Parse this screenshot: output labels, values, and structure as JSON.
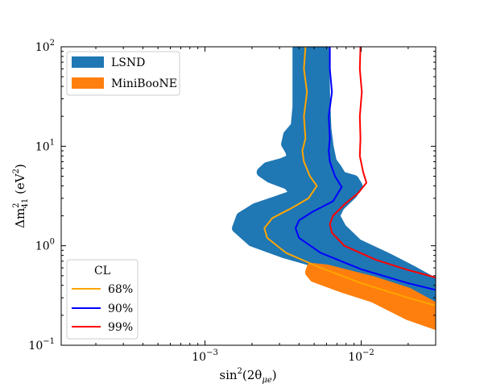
{
  "chart_data": {
    "type": "contour",
    "xscale": "log",
    "yscale": "log",
    "xlim": [
      0.00012,
      0.03
    ],
    "ylim": [
      0.1,
      100
    ],
    "xlabel": "sin²(2θμe)",
    "xlabel_parts": {
      "base": "sin",
      "sup": "2",
      "mid": "(2θ",
      "sub": "μe",
      "end": ")"
    },
    "ylabel": "Δm²₄₁ (eV²)",
    "ylabel_parts": {
      "base": "Δm",
      "sup": "2",
      "sub": "41",
      "unit": " (eV",
      "unit_sup": "2",
      "unit_end": ")"
    },
    "x_ticks": [
      {
        "value": 0.001,
        "base": "10",
        "exp": "−3"
      },
      {
        "value": 0.01,
        "base": "10",
        "exp": "−2"
      }
    ],
    "y_ticks": [
      {
        "value": 0.1,
        "base": "10",
        "exp": "−1"
      },
      {
        "value": 1,
        "base": "10",
        "exp": "0"
      },
      {
        "value": 10,
        "base": "10",
        "exp": "1"
      },
      {
        "value": 100,
        "base": "10",
        "exp": "2"
      }
    ],
    "regions": [
      {
        "name": "LSND",
        "color": "#1f77b4",
        "polygon": [
          [
            0.0039,
            100
          ],
          [
            0.0058,
            100
          ],
          [
            0.0059,
            30
          ],
          [
            0.006,
            15
          ],
          [
            0.0062,
            10
          ],
          [
            0.0065,
            7
          ],
          [
            0.007,
            6
          ],
          [
            0.0075,
            5
          ],
          [
            0.009,
            4.6
          ],
          [
            0.0095,
            4
          ],
          [
            0.0088,
            3.3
          ],
          [
            0.0073,
            2.5
          ],
          [
            0.0068,
            2.0
          ],
          [
            0.0075,
            1.5
          ],
          [
            0.0095,
            1.05
          ],
          [
            0.015,
            0.75
          ],
          [
            0.022,
            0.55
          ],
          [
            0.03,
            0.42
          ],
          [
            0.03,
            0.3
          ],
          [
            0.022,
            0.36
          ],
          [
            0.014,
            0.48
          ],
          [
            0.009,
            0.56
          ],
          [
            0.0055,
            0.66
          ],
          [
            0.0032,
            0.84
          ],
          [
            0.002,
            1.1
          ],
          [
            0.0016,
            1.5
          ],
          [
            0.0017,
            1.95
          ],
          [
            0.0021,
            2.4
          ],
          [
            0.0028,
            2.8
          ],
          [
            0.0038,
            3.3
          ],
          [
            0.0034,
            4.1
          ],
          [
            0.0026,
            4.8
          ],
          [
            0.0023,
            5.5
          ],
          [
            0.0025,
            6.2
          ],
          [
            0.0031,
            6.8
          ],
          [
            0.0036,
            7.5
          ],
          [
            0.0035,
            9
          ],
          [
            0.0033,
            10.5
          ],
          [
            0.0034,
            13
          ],
          [
            0.0038,
            16
          ],
          [
            0.0039,
            25
          ]
        ]
      },
      {
        "name": "MiniBooNE",
        "color": "#ff7f0e",
        "polygon": [
          [
            0.0048,
            0.6
          ],
          [
            0.006,
            0.58
          ],
          [
            0.012,
            0.44
          ],
          [
            0.02,
            0.34
          ],
          [
            0.03,
            0.24
          ],
          [
            0.03,
            0.16
          ],
          [
            0.02,
            0.2
          ],
          [
            0.012,
            0.3
          ],
          [
            0.0075,
            0.38
          ],
          [
            0.005,
            0.48
          ],
          [
            0.0047,
            0.54
          ]
        ]
      }
    ],
    "contours": [
      {
        "name": "68%",
        "color": "#ffa500",
        "points": [
          [
            0.0044,
            100
          ],
          [
            0.0043,
            60
          ],
          [
            0.0045,
            35
          ],
          [
            0.0043,
            20
          ],
          [
            0.0044,
            12
          ],
          [
            0.0042,
            9
          ],
          [
            0.0043,
            7
          ],
          [
            0.0047,
            5
          ],
          [
            0.0052,
            4.0
          ],
          [
            0.0046,
            3.0
          ],
          [
            0.0036,
            2.4
          ],
          [
            0.0027,
            1.9
          ],
          [
            0.0024,
            1.5
          ],
          [
            0.0025,
            1.2
          ],
          [
            0.0033,
            0.85
          ],
          [
            0.0055,
            0.6
          ],
          [
            0.01,
            0.42
          ],
          [
            0.02,
            0.3
          ],
          [
            0.03,
            0.25
          ]
        ]
      },
      {
        "name": "90%",
        "color": "#0000ff",
        "points": [
          [
            0.0063,
            100
          ],
          [
            0.0063,
            60
          ],
          [
            0.0065,
            35
          ],
          [
            0.0062,
            20
          ],
          [
            0.0063,
            12
          ],
          [
            0.0062,
            9
          ],
          [
            0.0063,
            7
          ],
          [
            0.0068,
            5
          ],
          [
            0.0075,
            3.9
          ],
          [
            0.0066,
            2.8
          ],
          [
            0.0049,
            2.2
          ],
          [
            0.004,
            1.8
          ],
          [
            0.0038,
            1.5
          ],
          [
            0.004,
            1.2
          ],
          [
            0.0055,
            0.85
          ],
          [
            0.01,
            0.58
          ],
          [
            0.02,
            0.42
          ],
          [
            0.03,
            0.36
          ]
        ]
      },
      {
        "name": "99%",
        "color": "#ff0000",
        "points": [
          [
            0.0099,
            100
          ],
          [
            0.0098,
            60
          ],
          [
            0.0101,
            35
          ],
          [
            0.0098,
            20
          ],
          [
            0.0099,
            12
          ],
          [
            0.0098,
            8
          ],
          [
            0.0103,
            5.5
          ],
          [
            0.0108,
            4.3
          ],
          [
            0.0096,
            3.4
          ],
          [
            0.0078,
            2.6
          ],
          [
            0.0066,
            2.0
          ],
          [
            0.0063,
            1.65
          ],
          [
            0.0065,
            1.35
          ],
          [
            0.0078,
            1.0
          ],
          [
            0.0125,
            0.72
          ],
          [
            0.02,
            0.57
          ],
          [
            0.03,
            0.48
          ]
        ]
      }
    ],
    "legend_regions": {
      "position": "upper-left",
      "entries": [
        {
          "label": "LSND",
          "color": "#1f77b4"
        },
        {
          "label": "MiniBooNE",
          "color": "#ff7f0e"
        }
      ]
    },
    "legend_cl": {
      "position": "lower-left",
      "title": "CL",
      "entries": [
        {
          "label": "68%",
          "color": "#ffa500"
        },
        {
          "label": "90%",
          "color": "#0000ff"
        },
        {
          "label": "99%",
          "color": "#ff0000"
        }
      ]
    }
  }
}
